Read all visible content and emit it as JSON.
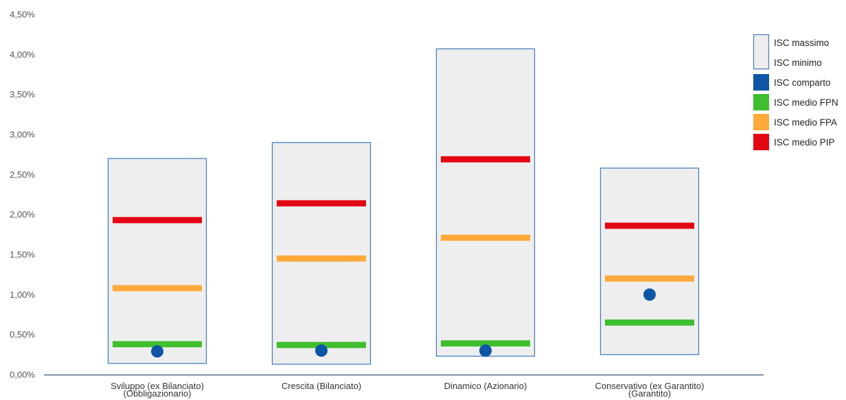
{
  "chart_data": {
    "type": "bar",
    "categories": [
      [
        "Sviluppo (ex Bilanciato)",
        "(Obbligazionario)"
      ],
      [
        "Crescita (Bilanciato)"
      ],
      [
        "Dinamico (Azionario)"
      ],
      [
        "Conservativo (ex Garantito)",
        "(Garantito)"
      ]
    ],
    "ylim": [
      0,
      4.5
    ],
    "yticks": [
      0,
      0.5,
      1.0,
      1.5,
      2.0,
      2.5,
      3.0,
      3.5,
      4.0,
      4.5
    ],
    "ytick_labels": [
      "0,00%",
      "0,50%",
      "1,00%",
      "1,50%",
      "2,00%",
      "2,50%",
      "3,00%",
      "3,50%",
      "4,00%",
      "4,50%"
    ],
    "grid": false,
    "legend_position": "top-right",
    "series": [
      {
        "name": "ISC massimo",
        "values": [
          2.7,
          2.9,
          4.07,
          2.58
        ],
        "color": "#EEEEEE",
        "border": "#4A7EBB"
      },
      {
        "name": "ISC minimo",
        "values": [
          0.14,
          0.13,
          0.23,
          0.25
        ],
        "color": "#EEEEEE",
        "border": "#4A7EBB"
      },
      {
        "name": "ISC comparto",
        "values": [
          0.29,
          0.3,
          0.3,
          1.0
        ],
        "color": "#0D56A6"
      },
      {
        "name": "ISC medio FPN",
        "values": [
          0.38,
          0.37,
          0.39,
          0.65
        ],
        "color": "#3FBF2F"
      },
      {
        "name": "ISC medio FPA",
        "values": [
          1.08,
          1.45,
          1.71,
          1.2
        ],
        "color": "#FFA93A"
      },
      {
        "name": "ISC medio PIP",
        "values": [
          1.93,
          2.14,
          2.69,
          1.86
        ],
        "color": "#E30613"
      }
    ],
    "colors": {
      "axis": "#2F4F6F",
      "tick_text": "#555555"
    }
  }
}
